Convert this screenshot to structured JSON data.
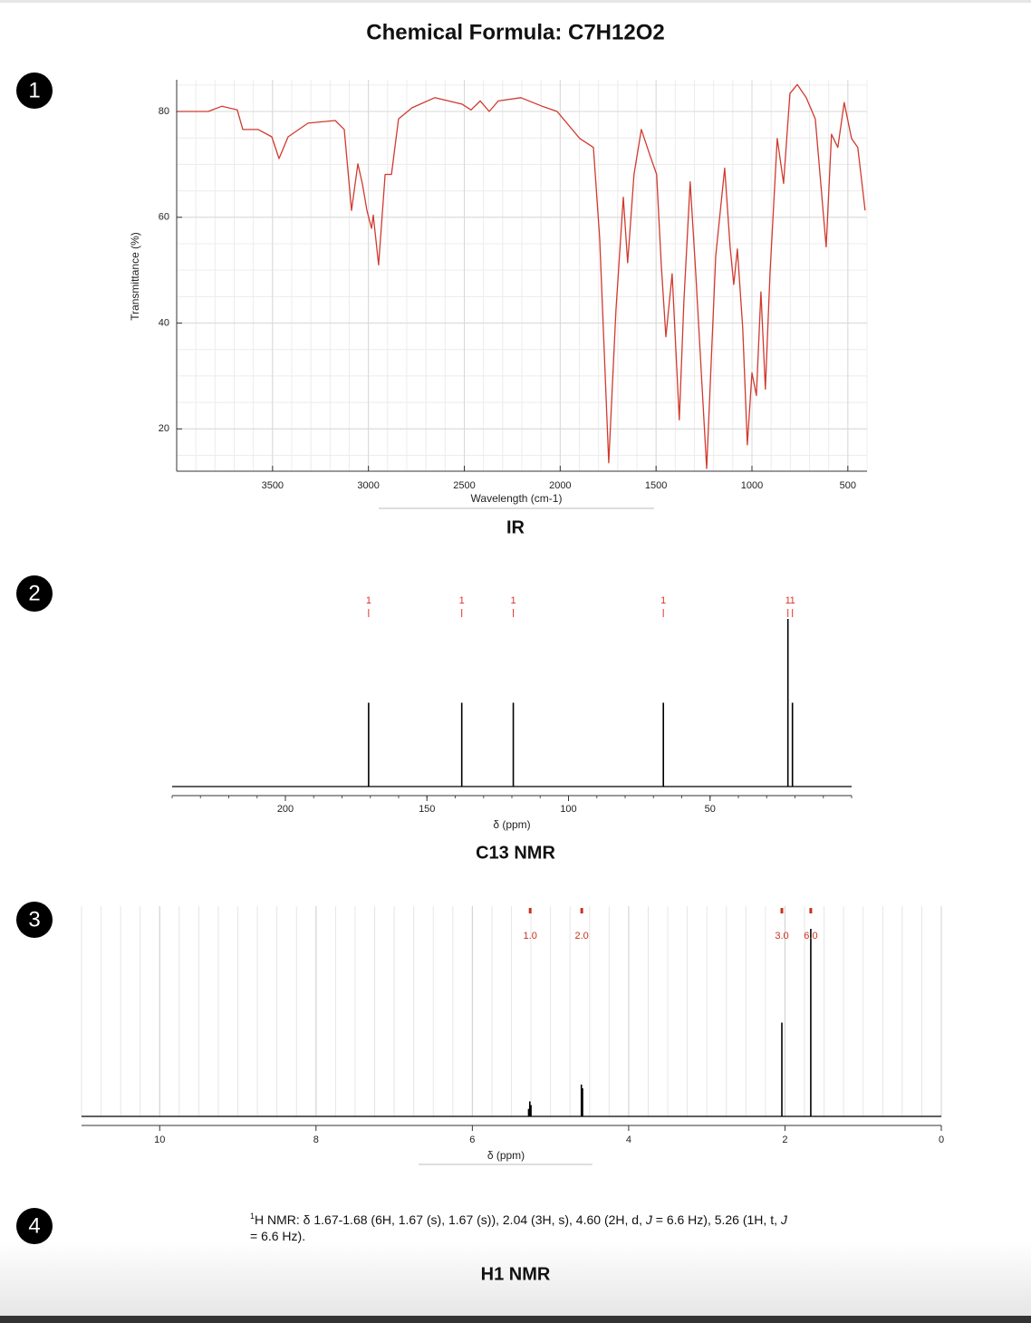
{
  "title": "Chemical Formula: C7H12O2",
  "steps": [
    "1",
    "2",
    "3",
    "4"
  ],
  "description": {
    "sup": "1",
    "parts": [
      "H NMR: δ 1.67-1.68 (6H, 1.67 (s), 1.67 (s)), 2.04 (3H, s), 4.60 (2H, d, ",
      "J",
      " = 6.6 Hz), 5.26 (1H, t, ",
      "J",
      " = 6.6 Hz)."
    ]
  },
  "chart_data": [
    {
      "type": "line",
      "title": "IR",
      "x_label": "Wavelength (cm-1)",
      "y_label": "Transmittance (%)",
      "color": "#d03a2f",
      "x": [
        3990,
        3835,
        3764,
        3684,
        3655,
        3575,
        3504,
        3466,
        3419,
        3315,
        3173,
        3126,
        3088,
        3055,
        3032,
        3008,
        2984,
        2975,
        2947,
        2913,
        2880,
        2843,
        2772,
        2654,
        2512,
        2465,
        2417,
        2370,
        2323,
        2205,
        2087,
        2016,
        1898,
        1827,
        1794,
        1747,
        1709,
        1671,
        1648,
        1615,
        1577,
        1530,
        1497,
        1473,
        1449,
        1416,
        1379,
        1355,
        1322,
        1293,
        1236,
        1189,
        1142,
        1114,
        1095,
        1076,
        1048,
        1024,
        1000,
        977,
        953,
        930,
        906,
        868,
        835,
        802,
        764,
        717,
        670,
        613,
        585,
        552,
        519,
        481,
        448,
        410
      ],
      "values": [
        80,
        80,
        81,
        80.3,
        76.6,
        76.6,
        75.2,
        71.1,
        75.2,
        77.8,
        78.3,
        76.6,
        61.3,
        70.1,
        66.4,
        61.3,
        57.9,
        60.4,
        51,
        68.1,
        68.1,
        78.6,
        80.7,
        82.6,
        81.4,
        80.3,
        82,
        80,
        82,
        82.6,
        80.9,
        80,
        74.9,
        73.2,
        56.1,
        13.6,
        42.5,
        63.8,
        51.4,
        68.1,
        76.6,
        71.5,
        68.1,
        51,
        37.4,
        49.3,
        21.7,
        44.2,
        66.7,
        49.3,
        12.5,
        52.7,
        69.3,
        54.4,
        47.3,
        54,
        39.1,
        17,
        30.6,
        26.3,
        45.9,
        27.5,
        49.3,
        74.9,
        66.4,
        83.4,
        85.1,
        82.6,
        78.6,
        54.4,
        75.7,
        73.2,
        81.7,
        74.9,
        73.2,
        61.3
      ],
      "xlim": [
        4000,
        400
      ],
      "ylim": [
        12,
        86
      ],
      "xticks": [
        3500,
        3000,
        2500,
        2000,
        1500,
        1000,
        500
      ],
      "yticks": [
        20,
        40,
        60,
        80
      ],
      "grid": true,
      "x_minor_step": 100,
      "y_minor_step": 5
    },
    {
      "type": "stick",
      "title": "C13 NMR",
      "x_label": "δ (ppm)",
      "color": "#000000",
      "x": [
        170.6,
        137.7,
        119.5,
        66.5,
        22.5,
        20.9
      ],
      "values": [
        1,
        1,
        1,
        1,
        2,
        1
      ],
      "xlim": [
        240,
        0
      ],
      "ylim": [
        0,
        2
      ],
      "xticks": [
        200,
        150,
        100,
        50
      ],
      "x_minor_step": 10,
      "integrals": {
        "color": "#e0312b",
        "values": [
          1,
          1,
          1,
          1,
          1,
          1
        ]
      }
    },
    {
      "type": "stick",
      "title": "H1 NMR",
      "x_label": "δ (ppm)",
      "color": "#000000",
      "x": [
        5.28,
        5.265,
        5.25,
        4.605,
        4.59,
        2.04,
        1.67
      ],
      "values": [
        0.04,
        0.08,
        0.06,
        0.17,
        0.15,
        0.5,
        1
      ],
      "xlim": [
        11,
        0
      ],
      "ylim": [
        0,
        1
      ],
      "xticks": [
        10,
        8,
        6,
        4,
        2,
        0
      ],
      "grid": true,
      "x_minor_step": 0.25,
      "integrals": {
        "color": "#c8321e",
        "x": [
          5.26,
          4.6,
          2.04,
          1.67
        ],
        "values": [
          1,
          2,
          3,
          6
        ],
        "value_labels": [
          "1.0",
          "2.0",
          "3.0",
          "6.0"
        ]
      }
    }
  ]
}
